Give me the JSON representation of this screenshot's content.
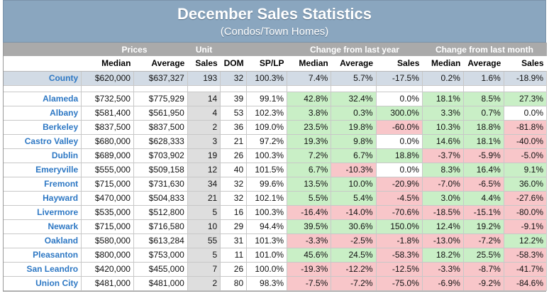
{
  "title": "December Sales Statistics",
  "subtitle": "(Condos/Town Homes)",
  "groups": {
    "prices": "Prices",
    "unit": "Unit",
    "change_year": "Change from last year",
    "change_month": "Change from last month"
  },
  "headers": [
    "Median",
    "Average",
    "Sales",
    "DOM",
    "SP/LP",
    "Median",
    "Average",
    "Sales",
    "Median",
    "Average",
    "Sales"
  ],
  "county": {
    "area": "County",
    "values": [
      "$620,000",
      "$637,327",
      "193",
      "32",
      "100.3%",
      "7.4%",
      "5.7%",
      "-17.5%",
      "0.2%",
      "1.6%",
      "-18.9%"
    ],
    "changes": [
      1,
      1,
      -1,
      1,
      1,
      -1
    ]
  },
  "rows": [
    {
      "area": "Alameda",
      "values": [
        "$732,500",
        "$775,929",
        "14",
        "39",
        "99.1%",
        "42.8%",
        "32.4%",
        "0.0%",
        "18.1%",
        "8.5%",
        "27.3%"
      ],
      "changes": [
        1,
        1,
        0,
        1,
        1,
        1
      ]
    },
    {
      "area": "Albany",
      "values": [
        "$581,400",
        "$561,950",
        "4",
        "53",
        "102.3%",
        "3.8%",
        "0.3%",
        "300.0%",
        "3.3%",
        "0.7%",
        "0.0%"
      ],
      "changes": [
        1,
        1,
        1,
        1,
        1,
        0
      ]
    },
    {
      "area": "Berkeley",
      "values": [
        "$837,500",
        "$837,500",
        "2",
        "36",
        "109.0%",
        "23.5%",
        "19.8%",
        "-60.0%",
        "10.3%",
        "18.8%",
        "-81.8%"
      ],
      "changes": [
        1,
        1,
        -1,
        1,
        1,
        -1
      ]
    },
    {
      "area": "Castro Valley",
      "values": [
        "$680,000",
        "$628,333",
        "3",
        "21",
        "97.2%",
        "19.3%",
        "9.8%",
        "0.0%",
        "14.6%",
        "18.1%",
        "-40.0%"
      ],
      "changes": [
        1,
        1,
        0,
        1,
        1,
        -1
      ]
    },
    {
      "area": "Dublin",
      "values": [
        "$689,000",
        "$703,902",
        "19",
        "26",
        "100.3%",
        "7.2%",
        "6.7%",
        "18.8%",
        "-3.7%",
        "-5.9%",
        "-5.0%"
      ],
      "changes": [
        1,
        1,
        1,
        -1,
        -1,
        -1
      ]
    },
    {
      "area": "Emeryville",
      "values": [
        "$555,000",
        "$509,158",
        "12",
        "40",
        "101.5%",
        "6.7%",
        "-10.3%",
        "0.0%",
        "8.3%",
        "16.4%",
        "9.1%"
      ],
      "changes": [
        1,
        -1,
        0,
        1,
        1,
        1
      ]
    },
    {
      "area": "Fremont",
      "values": [
        "$715,000",
        "$731,630",
        "34",
        "32",
        "99.6%",
        "13.5%",
        "10.0%",
        "-20.9%",
        "-7.0%",
        "-6.5%",
        "36.0%"
      ],
      "changes": [
        1,
        1,
        -1,
        -1,
        -1,
        1
      ]
    },
    {
      "area": "Hayward",
      "values": [
        "$470,000",
        "$504,833",
        "21",
        "32",
        "102.1%",
        "5.5%",
        "5.4%",
        "-4.5%",
        "3.0%",
        "4.4%",
        "-27.6%"
      ],
      "changes": [
        1,
        1,
        -1,
        1,
        1,
        -1
      ]
    },
    {
      "area": "Livermore",
      "values": [
        "$535,000",
        "$512,800",
        "5",
        "16",
        "100.3%",
        "-16.4%",
        "-14.0%",
        "-70.6%",
        "-18.5%",
        "-15.1%",
        "-80.0%"
      ],
      "changes": [
        -1,
        -1,
        -1,
        -1,
        -1,
        -1
      ]
    },
    {
      "area": "Newark",
      "values": [
        "$715,000",
        "$716,580",
        "10",
        "29",
        "94.4%",
        "39.5%",
        "30.6%",
        "150.0%",
        "12.4%",
        "19.2%",
        "-9.1%"
      ],
      "changes": [
        1,
        1,
        1,
        1,
        1,
        -1
      ]
    },
    {
      "area": "Oakland",
      "values": [
        "$580,000",
        "$613,284",
        "55",
        "31",
        "101.3%",
        "-3.3%",
        "-2.5%",
        "-1.8%",
        "-13.0%",
        "-7.2%",
        "12.2%"
      ],
      "changes": [
        -1,
        -1,
        -1,
        -1,
        -1,
        1
      ]
    },
    {
      "area": "Pleasanton",
      "values": [
        "$800,000",
        "$753,000",
        "5",
        "11",
        "101.0%",
        "45.6%",
        "24.5%",
        "-58.3%",
        "18.2%",
        "25.5%",
        "-58.3%"
      ],
      "changes": [
        1,
        1,
        -1,
        1,
        1,
        -1
      ]
    },
    {
      "area": "San Leandro",
      "values": [
        "$420,000",
        "$455,000",
        "7",
        "26",
        "100.0%",
        "-19.3%",
        "-12.2%",
        "-12.5%",
        "-3.3%",
        "-8.7%",
        "-41.7%"
      ],
      "changes": [
        -1,
        -1,
        -1,
        -1,
        -1,
        -1
      ]
    },
    {
      "area": "Union City",
      "values": [
        "$481,000",
        "$481,000",
        "2",
        "80",
        "98.3%",
        "-7.5%",
        "-7.2%",
        "-75.0%",
        "-6.9%",
        "-9.2%",
        "-84.6%"
      ],
      "changes": [
        -1,
        -1,
        -1,
        -1,
        -1,
        -1
      ]
    }
  ],
  "colors": {
    "title_band": "#8aa6bf",
    "group_band": "#aaaaaa",
    "positive": "#c9efc6",
    "negative": "#f8c6c9",
    "county_row": "#d2dbe5",
    "area_text": "#2e78c4"
  }
}
